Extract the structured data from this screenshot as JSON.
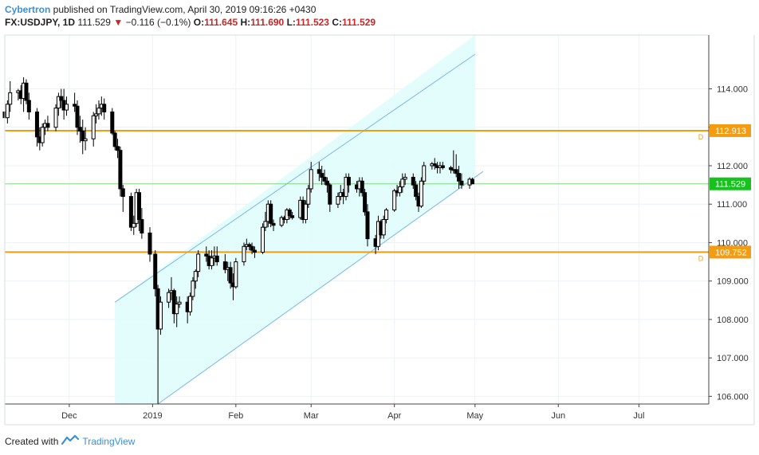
{
  "header": {
    "author": "Cybertron",
    "published_text": " published on TradingView.com, April 30, 2019 09:16:26 +0430",
    "symbol": "FX:USDJPY, 1D",
    "last": "111.529",
    "change": "−0.116 (−0.1%)",
    "o_label": "O:",
    "o_val": "111.645",
    "h_label": "H:",
    "h_val": "111.690",
    "l_label": "L:",
    "l_val": "111.523",
    "c_label": "C:",
    "c_val": "111.529"
  },
  "footer": {
    "created_with": "Created with",
    "brand": "TradingView"
  },
  "colors": {
    "channel_fill": "#e0fcfc",
    "channel_line": "#7ab7e8",
    "level_line": "#f39c12",
    "current_line": "#7ed67e",
    "current_badge": "#16c31c",
    "candle_up": "#ffffff",
    "candle_down": "#000000"
  },
  "chart_data": {
    "type": "candlestick",
    "title": "FX:USDJPY, 1D",
    "ylim": [
      105.8,
      115.4
    ],
    "y_ticks": [
      "114.000",
      "113.000",
      "112.000",
      "111.000",
      "110.000",
      "109.000",
      "108.000",
      "107.000",
      "106.000"
    ],
    "x_ticks": [
      "Dec",
      "2019",
      "Feb",
      "Mar",
      "Apr",
      "May",
      "Jun",
      "Jul"
    ],
    "x_range": [
      "2018-11-07",
      "2019-07-27"
    ],
    "horizontal_levels": [
      {
        "value": 112.913,
        "label": "112.913",
        "marker": "D"
      },
      {
        "value": 109.752,
        "label": "109.752",
        "marker": "D"
      }
    ],
    "current_price": {
      "value": 111.529,
      "label": "111.529"
    },
    "channel": {
      "lower": {
        "start": [
          "2019-01-03",
          105.8
        ],
        "end": [
          "2019-05-04",
          111.85
        ]
      },
      "upper": {
        "start": [
          "2018-12-18",
          108.45
        ],
        "end": [
          "2019-05-01",
          114.9
        ]
      },
      "shade_x": [
        "2018-12-18",
        "2019-05-01"
      ]
    },
    "series": [
      {
        "values": [
          [
            "2018-11-07",
            113.4,
            113.5,
            113.0,
            113.25
          ],
          [
            "2018-11-08",
            113.25,
            113.7,
            113.1,
            113.6
          ],
          [
            "2018-11-09",
            113.6,
            114.2,
            113.4,
            113.9
          ],
          [
            "2018-11-12",
            113.9,
            114.0,
            113.7,
            113.95
          ],
          [
            "2018-11-13",
            113.95,
            114.1,
            113.6,
            113.75
          ],
          [
            "2018-11-14",
            113.75,
            114.3,
            113.4,
            114.15
          ],
          [
            "2018-11-15",
            114.15,
            114.25,
            113.6,
            113.7
          ],
          [
            "2018-11-16",
            113.7,
            113.9,
            113.2,
            113.4
          ],
          [
            "2018-11-19",
            113.4,
            113.5,
            112.5,
            112.75
          ],
          [
            "2018-11-20",
            112.75,
            113.0,
            112.4,
            112.6
          ],
          [
            "2018-11-21",
            112.6,
            113.1,
            112.5,
            113.0
          ],
          [
            "2018-11-22",
            113.0,
            113.2,
            112.8,
            113.1
          ],
          [
            "2018-11-23",
            113.1,
            113.3,
            112.9,
            113.0
          ],
          [
            "2018-11-26",
            113.0,
            113.6,
            112.9,
            113.5
          ],
          [
            "2018-11-27",
            113.5,
            113.9,
            113.3,
            113.8
          ],
          [
            "2018-11-28",
            113.8,
            114.0,
            113.5,
            113.7
          ],
          [
            "2018-11-29",
            113.7,
            114.0,
            113.2,
            113.45
          ],
          [
            "2018-11-30",
            113.45,
            113.8,
            113.3,
            113.6
          ],
          [
            "2018-12-03",
            113.6,
            113.9,
            113.4,
            113.55
          ],
          [
            "2018-12-04",
            113.55,
            113.7,
            112.8,
            113.0
          ],
          [
            "2018-12-05",
            113.0,
            113.3,
            112.6,
            112.9
          ],
          [
            "2018-12-06",
            112.9,
            113.2,
            112.3,
            112.65
          ],
          [
            "2018-12-07",
            112.65,
            113.0,
            112.4,
            112.7
          ],
          [
            "2018-12-10",
            112.7,
            113.4,
            112.5,
            113.3
          ],
          [
            "2018-12-11",
            113.3,
            113.6,
            113.1,
            113.35
          ],
          [
            "2018-12-12",
            113.35,
            113.7,
            113.2,
            113.5
          ],
          [
            "2018-12-13",
            113.5,
            113.8,
            113.3,
            113.6
          ],
          [
            "2018-12-14",
            113.6,
            113.75,
            113.2,
            113.4
          ],
          [
            "2018-12-17",
            113.4,
            113.5,
            112.8,
            112.85
          ],
          [
            "2018-12-18",
            112.85,
            112.9,
            112.4,
            112.5
          ],
          [
            "2018-12-19",
            112.5,
            112.7,
            112.2,
            112.4
          ],
          [
            "2018-12-20",
            112.4,
            112.5,
            111.2,
            111.4
          ],
          [
            "2018-12-21",
            111.4,
            111.5,
            110.8,
            111.2
          ],
          [
            "2018-12-24",
            111.2,
            111.3,
            110.3,
            110.4
          ],
          [
            "2018-12-25",
            110.4,
            110.7,
            110.2,
            110.5
          ],
          [
            "2018-12-26",
            110.5,
            111.4,
            110.4,
            111.3
          ],
          [
            "2018-12-27",
            111.3,
            111.4,
            110.3,
            110.6
          ],
          [
            "2018-12-28",
            110.6,
            110.9,
            110.1,
            110.25
          ],
          [
            "2018-12-31",
            110.25,
            110.4,
            109.5,
            109.7
          ],
          [
            "2019-01-02",
            109.7,
            109.8,
            108.6,
            108.8
          ],
          [
            "2019-01-03",
            108.8,
            108.9,
            105.8,
            107.75
          ],
          [
            "2019-01-04",
            107.75,
            108.6,
            107.6,
            108.45
          ],
          [
            "2019-01-07",
            108.45,
            108.8,
            108.3,
            108.7
          ],
          [
            "2019-01-08",
            108.7,
            109.1,
            108.5,
            108.75
          ],
          [
            "2019-01-09",
            108.75,
            108.8,
            107.9,
            108.15
          ],
          [
            "2019-01-10",
            108.15,
            108.6,
            107.8,
            108.4
          ],
          [
            "2019-01-11",
            108.4,
            108.6,
            108.3,
            108.45
          ],
          [
            "2019-01-14",
            108.45,
            108.6,
            107.9,
            108.2
          ],
          [
            "2019-01-15",
            108.2,
            108.7,
            108.1,
            108.6
          ],
          [
            "2019-01-16",
            108.6,
            109.1,
            108.5,
            109.0
          ],
          [
            "2019-01-17",
            109.0,
            109.3,
            108.8,
            109.25
          ],
          [
            "2019-01-18",
            109.25,
            109.8,
            109.1,
            109.7
          ],
          [
            "2019-01-21",
            109.7,
            109.9,
            109.5,
            109.65
          ],
          [
            "2019-01-22",
            109.65,
            109.8,
            109.3,
            109.4
          ],
          [
            "2019-01-23",
            109.4,
            109.8,
            109.3,
            109.6
          ],
          [
            "2019-01-24",
            109.6,
            109.9,
            109.4,
            109.65
          ],
          [
            "2019-01-25",
            109.65,
            109.9,
            109.4,
            109.5
          ],
          [
            "2019-01-28",
            109.5,
            109.7,
            109.2,
            109.3
          ],
          [
            "2019-01-29",
            109.3,
            109.5,
            109.0,
            109.35
          ],
          [
            "2019-01-30",
            109.35,
            109.5,
            108.8,
            108.95
          ],
          [
            "2019-01-31",
            108.95,
            109.2,
            108.5,
            108.85
          ],
          [
            "2019-02-01",
            108.85,
            109.6,
            108.8,
            109.5
          ],
          [
            "2019-02-04",
            109.5,
            110.0,
            109.4,
            109.9
          ],
          [
            "2019-02-05",
            109.9,
            110.1,
            109.8,
            109.95
          ],
          [
            "2019-02-06",
            109.95,
            110.0,
            109.8,
            109.9
          ],
          [
            "2019-02-07",
            109.9,
            110.0,
            109.7,
            109.8
          ],
          [
            "2019-02-08",
            109.8,
            109.9,
            109.6,
            109.75
          ],
          [
            "2019-02-11",
            109.75,
            110.5,
            109.7,
            110.4
          ],
          [
            "2019-02-12",
            110.4,
            110.8,
            110.3,
            110.55
          ],
          [
            "2019-02-13",
            110.55,
            111.1,
            110.4,
            111.0
          ],
          [
            "2019-02-14",
            111.0,
            111.1,
            110.4,
            110.5
          ],
          [
            "2019-02-15",
            110.5,
            110.6,
            110.3,
            110.45
          ],
          [
            "2019-02-18",
            110.45,
            110.7,
            110.4,
            110.65
          ],
          [
            "2019-02-19",
            110.65,
            110.7,
            110.5,
            110.6
          ],
          [
            "2019-02-20",
            110.6,
            110.9,
            110.5,
            110.85
          ],
          [
            "2019-02-21",
            110.85,
            110.9,
            110.6,
            110.7
          ],
          [
            "2019-02-22",
            110.7,
            110.8,
            110.6,
            110.65
          ],
          [
            "2019-02-25",
            110.65,
            111.2,
            110.6,
            111.1
          ],
          [
            "2019-02-26",
            111.1,
            111.2,
            110.5,
            110.6
          ],
          [
            "2019-02-27",
            110.6,
            111.1,
            110.5,
            111.0
          ],
          [
            "2019-02-28",
            111.0,
            111.5,
            110.9,
            111.4
          ],
          [
            "2019-03-01",
            111.4,
            112.1,
            111.3,
            111.9
          ],
          [
            "2019-03-04",
            111.9,
            112.1,
            111.6,
            111.8
          ],
          [
            "2019-03-05",
            111.8,
            112.0,
            111.5,
            111.7
          ],
          [
            "2019-03-06",
            111.7,
            111.9,
            111.5,
            111.6
          ],
          [
            "2019-03-07",
            111.6,
            111.7,
            111.3,
            111.5
          ],
          [
            "2019-03-08",
            111.5,
            111.55,
            110.8,
            111.0
          ],
          [
            "2019-03-11",
            111.0,
            111.3,
            110.9,
            111.2
          ],
          [
            "2019-03-12",
            111.2,
            111.5,
            111.1,
            111.3
          ],
          [
            "2019-03-13",
            111.3,
            111.4,
            111.0,
            111.2
          ],
          [
            "2019-03-14",
            111.2,
            111.8,
            111.1,
            111.7
          ],
          [
            "2019-03-15",
            111.7,
            111.8,
            111.3,
            111.5
          ],
          [
            "2019-03-18",
            111.5,
            111.6,
            111.3,
            111.4
          ],
          [
            "2019-03-19",
            111.4,
            111.7,
            111.2,
            111.6
          ],
          [
            "2019-03-20",
            111.6,
            111.7,
            111.2,
            111.3
          ],
          [
            "2019-03-21",
            111.3,
            111.4,
            110.7,
            110.8
          ],
          [
            "2019-03-22",
            110.8,
            111.0,
            109.9,
            110.1
          ],
          [
            "2019-03-25",
            110.1,
            110.2,
            109.7,
            109.9
          ],
          [
            "2019-03-26",
            109.9,
            110.7,
            109.8,
            110.55
          ],
          [
            "2019-03-27",
            110.55,
            110.6,
            110.1,
            110.2
          ],
          [
            "2019-03-28",
            110.2,
            110.7,
            110.1,
            110.6
          ],
          [
            "2019-03-29",
            110.6,
            110.9,
            110.5,
            110.85
          ],
          [
            "2019-04-01",
            110.85,
            111.4,
            110.8,
            111.35
          ],
          [
            "2019-04-02",
            111.35,
            111.5,
            111.2,
            111.3
          ],
          [
            "2019-04-03",
            111.3,
            111.6,
            111.2,
            111.45
          ],
          [
            "2019-04-04",
            111.45,
            111.8,
            111.3,
            111.65
          ],
          [
            "2019-04-05",
            111.65,
            111.8,
            111.5,
            111.7
          ],
          [
            "2019-04-08",
            111.7,
            111.8,
            111.4,
            111.5
          ],
          [
            "2019-04-09",
            111.5,
            111.6,
            111.1,
            111.2
          ],
          [
            "2019-04-10",
            111.2,
            111.3,
            110.8,
            110.95
          ],
          [
            "2019-04-11",
            110.95,
            111.7,
            110.9,
            111.6
          ],
          [
            "2019-04-12",
            111.6,
            112.1,
            111.5,
            112.0
          ],
          [
            "2019-04-15",
            112.0,
            112.1,
            111.9,
            112.05
          ],
          [
            "2019-04-16",
            112.05,
            112.2,
            111.9,
            112.0
          ],
          [
            "2019-04-17",
            112.0,
            112.1,
            111.8,
            111.95
          ],
          [
            "2019-04-18",
            111.95,
            112.1,
            111.8,
            112.0
          ],
          [
            "2019-04-19",
            112.0,
            112.1,
            111.9,
            111.95
          ],
          [
            "2019-04-22",
            111.95,
            112.0,
            111.8,
            111.9
          ],
          [
            "2019-04-23",
            111.9,
            112.4,
            111.8,
            111.9
          ],
          [
            "2019-04-24",
            111.9,
            112.3,
            111.7,
            111.8
          ],
          [
            "2019-04-25",
            111.8,
            112.0,
            111.4,
            111.6
          ],
          [
            "2019-04-26",
            111.6,
            111.8,
            111.4,
            111.5
          ],
          [
            "2019-04-29",
            111.5,
            111.7,
            111.4,
            111.65
          ],
          [
            "2019-04-30",
            111.645,
            111.69,
            111.523,
            111.529
          ]
        ]
      }
    ]
  }
}
